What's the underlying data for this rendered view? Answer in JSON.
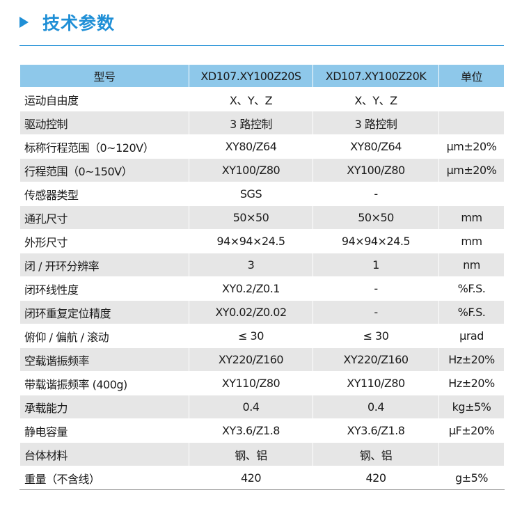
{
  "section": {
    "title": "技术参数",
    "icon": "triangle-bullet-icon",
    "accent_color": "#1f8fd6"
  },
  "table": {
    "header_color": "#8ec8ea",
    "stripe_color": "#e6e6e6",
    "headers": [
      "型号",
      "XD107.XY100Z20S",
      "XD107.XY100Z20K",
      "单位"
    ],
    "rows": [
      [
        "运动自由度",
        "X、Y、Z",
        "X、Y、Z",
        ""
      ],
      [
        "驱动控制",
        "3 路控制",
        "3 路控制",
        ""
      ],
      [
        "标称行程范围（0~120V）",
        "XY80/Z64",
        "XY80/Z64",
        "μm±20%"
      ],
      [
        "行程范围（0~150V）",
        "XY100/Z80",
        "XY100/Z80",
        "μm±20%"
      ],
      [
        "传感器类型",
        "SGS",
        "-",
        ""
      ],
      [
        "通孔尺寸",
        "50×50",
        "50×50",
        "mm"
      ],
      [
        "外形尺寸",
        "94×94×24.5",
        "94×94×24.5",
        "mm"
      ],
      [
        "闭 / 开环分辨率",
        "3",
        "1",
        "nm"
      ],
      [
        "闭环线性度",
        "XY0.2/Z0.1",
        "-",
        "%F.S."
      ],
      [
        "闭环重复定位精度",
        "XY0.02/Z0.02",
        "-",
        "%F.S."
      ],
      [
        "俯仰 / 偏航 / 滚动",
        "≤ 30",
        "≤ 30",
        "μrad"
      ],
      [
        "空载谐振频率",
        "XY220/Z160",
        "XY220/Z160",
        "Hz±20%"
      ],
      [
        "带载谐振频率 (400g)",
        "XY110/Z80",
        "XY110/Z80",
        "Hz±20%"
      ],
      [
        "承载能力",
        "0.4",
        "0.4",
        "kg±5%"
      ],
      [
        "静电容量",
        "XY3.6/Z1.8",
        "XY3.6/Z1.8",
        "μF±20%"
      ],
      [
        "台体材料",
        "钢、铝",
        "钢、铝",
        ""
      ],
      [
        "重量（不含线）",
        "420",
        "420",
        "g±5%"
      ]
    ]
  }
}
